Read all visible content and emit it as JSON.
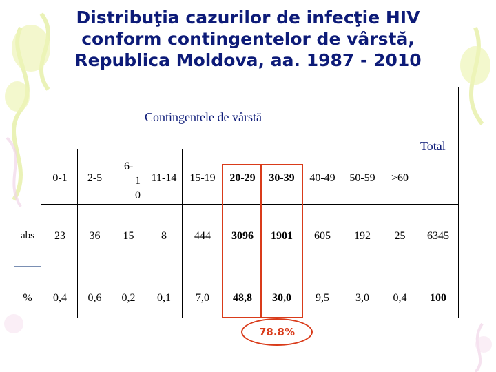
{
  "title": {
    "line1": "Distribuţia cazurilor de infecţie HIV",
    "line2": "conform contingentelor de vârstă,",
    "line3": "Republica Moldova, aa. 1987 - 2010"
  },
  "table": {
    "group_header": "Contingentele de vârstă",
    "total_header": "Total",
    "columns": [
      "0-1",
      "2-5",
      "6-10",
      "11-14",
      "15-19",
      "20-29",
      "30-39",
      "40-49",
      "50-59",
      ">60"
    ],
    "col_6_10_parts": [
      "6-",
      "1",
      "0"
    ],
    "rows": [
      {
        "label": "abs",
        "values": [
          "23",
          "36",
          "15",
          "8",
          "444",
          "3096",
          "1901",
          "605",
          "192",
          "25"
        ],
        "total": "6345"
      },
      {
        "label": "%",
        "values": [
          "0,4",
          "0,6",
          "0,2",
          "0,1",
          "7,0",
          "48,8",
          "30,0",
          "9,5",
          "3,0",
          "0,4"
        ],
        "total": "100"
      }
    ],
    "highlighted_columns": [
      "20-29",
      "30-39"
    ],
    "highlight_note": "78.8%"
  },
  "colors": {
    "title": "#0d1b78",
    "highlight": "#d93b1a",
    "decoration": "#e8f0a8"
  }
}
